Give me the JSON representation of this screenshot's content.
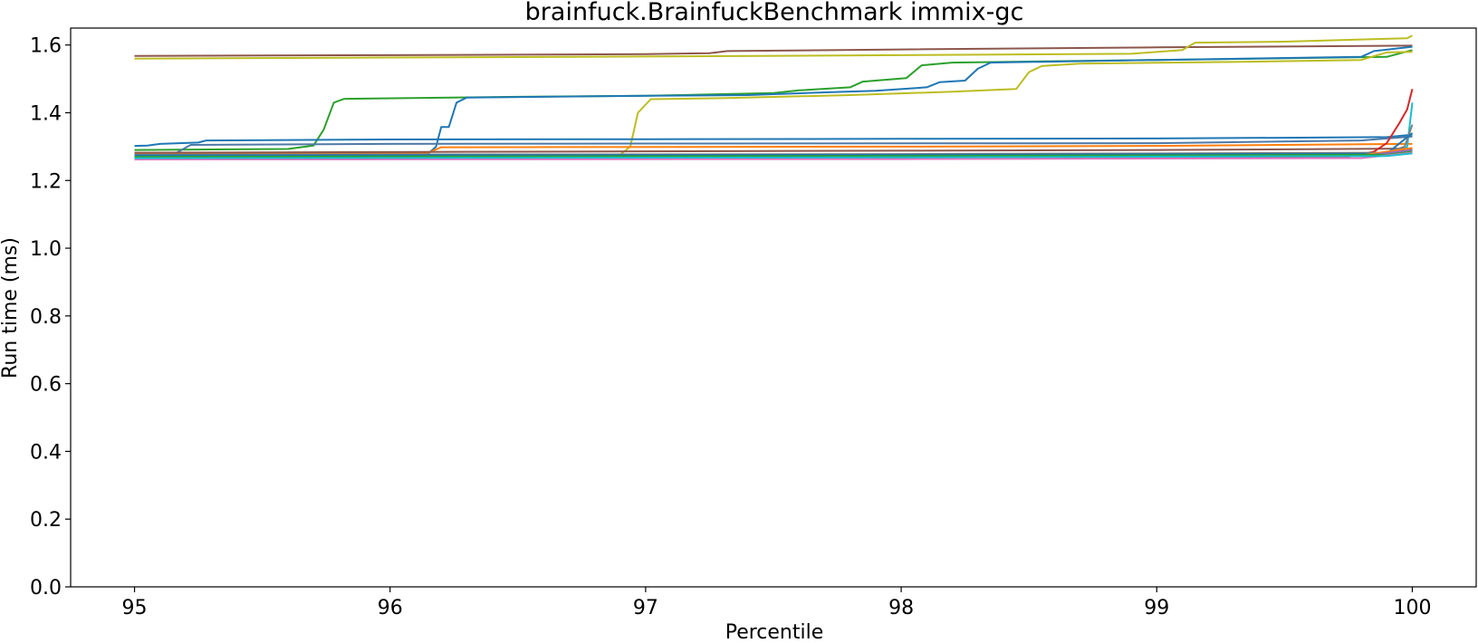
{
  "chart_data": {
    "type": "line",
    "title": "brainfuck.BrainfuckBenchmark immix-gc",
    "xlabel": "Percentile",
    "ylabel": "Run time (ms)",
    "xlim": [
      94.75,
      100.25
    ],
    "ylim": [
      0.0,
      1.65
    ],
    "xticks": [
      95,
      96,
      97,
      98,
      99,
      100
    ],
    "xtick_labels": [
      "95",
      "96",
      "97",
      "98",
      "99",
      "100"
    ],
    "yticks": [
      0.0,
      0.2,
      0.4,
      0.6,
      0.8,
      1.0,
      1.2,
      1.4,
      1.6
    ],
    "ytick_labels": [
      "0.0",
      "0.2",
      "0.4",
      "0.6",
      "0.8",
      "1.0",
      "1.2",
      "1.4",
      "1.6"
    ],
    "grid": false,
    "legend": "none",
    "series": [
      {
        "color": "#8c564b",
        "points": [
          [
            95,
            1.568
          ],
          [
            96,
            1.57
          ],
          [
            97,
            1.573
          ],
          [
            97.25,
            1.576
          ],
          [
            97.32,
            1.582
          ],
          [
            98,
            1.587
          ],
          [
            99,
            1.593
          ],
          [
            100,
            1.598
          ]
        ]
      },
      {
        "color": "#bcbd22",
        "points": [
          [
            95,
            1.56
          ],
          [
            96,
            1.563
          ],
          [
            97,
            1.566
          ],
          [
            98,
            1.57
          ],
          [
            98.9,
            1.574
          ],
          [
            99.1,
            1.585
          ],
          [
            99.15,
            1.607
          ],
          [
            99.5,
            1.61
          ],
          [
            99.98,
            1.62
          ],
          [
            100,
            1.628
          ]
        ]
      },
      {
        "color": "#2ca02c",
        "points": [
          [
            95,
            1.29
          ],
          [
            95.6,
            1.293
          ],
          [
            95.7,
            1.303
          ],
          [
            95.74,
            1.35
          ],
          [
            95.78,
            1.43
          ],
          [
            95.82,
            1.441
          ],
          [
            96.5,
            1.447
          ],
          [
            97,
            1.45
          ],
          [
            97.5,
            1.458
          ],
          [
            97.6,
            1.466
          ],
          [
            97.8,
            1.475
          ],
          [
            97.85,
            1.492
          ],
          [
            98.02,
            1.502
          ],
          [
            98.08,
            1.54
          ],
          [
            98.2,
            1.548
          ],
          [
            99,
            1.556
          ],
          [
            99.9,
            1.565
          ],
          [
            100,
            1.585
          ]
        ]
      },
      {
        "color": "#1f77b4",
        "points": [
          [
            95,
            1.27
          ],
          [
            96.15,
            1.28
          ],
          [
            96.18,
            1.3
          ],
          [
            96.2,
            1.358
          ],
          [
            96.23,
            1.358
          ],
          [
            96.26,
            1.43
          ],
          [
            96.3,
            1.445
          ],
          [
            97,
            1.45
          ],
          [
            97.4,
            1.452
          ],
          [
            97.7,
            1.46
          ],
          [
            97.9,
            1.465
          ],
          [
            98.1,
            1.475
          ],
          [
            98.15,
            1.49
          ],
          [
            98.25,
            1.495
          ],
          [
            98.3,
            1.53
          ],
          [
            98.35,
            1.548
          ],
          [
            99,
            1.556
          ],
          [
            99.8,
            1.565
          ],
          [
            99.85,
            1.582
          ],
          [
            100,
            1.595
          ]
        ]
      },
      {
        "color": "#bcbd22",
        "points": [
          [
            95,
            1.272
          ],
          [
            96.5,
            1.274
          ],
          [
            96.9,
            1.276
          ],
          [
            96.94,
            1.3
          ],
          [
            96.97,
            1.4
          ],
          [
            97.02,
            1.44
          ],
          [
            97.3,
            1.443
          ],
          [
            97.8,
            1.452
          ],
          [
            98.2,
            1.462
          ],
          [
            98.45,
            1.47
          ],
          [
            98.5,
            1.52
          ],
          [
            98.55,
            1.538
          ],
          [
            98.7,
            1.545
          ],
          [
            99.3,
            1.55
          ],
          [
            99.8,
            1.556
          ],
          [
            99.9,
            1.578
          ],
          [
            100,
            1.58
          ]
        ]
      },
      {
        "color": "#1f77b4",
        "points": [
          [
            95,
            1.302
          ],
          [
            95.05,
            1.303
          ],
          [
            95.1,
            1.308
          ],
          [
            95.25,
            1.312
          ],
          [
            95.28,
            1.318
          ],
          [
            96,
            1.321
          ],
          [
            97,
            1.322
          ],
          [
            98,
            1.323
          ],
          [
            99,
            1.324
          ],
          [
            99.9,
            1.328
          ],
          [
            100,
            1.335
          ]
        ]
      },
      {
        "color": "#4e79a7",
        "points": [
          [
            95,
            1.272
          ],
          [
            95.15,
            1.276
          ],
          [
            95.22,
            1.305
          ],
          [
            96,
            1.308
          ],
          [
            97,
            1.309
          ],
          [
            99,
            1.31
          ],
          [
            99.8,
            1.318
          ],
          [
            100,
            1.33
          ]
        ]
      },
      {
        "color": "#ff7f0e",
        "points": [
          [
            95,
            1.28
          ],
          [
            96.15,
            1.282
          ],
          [
            96.2,
            1.298
          ],
          [
            98,
            1.3
          ],
          [
            99,
            1.302
          ],
          [
            100,
            1.308
          ]
        ]
      },
      {
        "color": "#8c564b",
        "points": [
          [
            95,
            1.282
          ],
          [
            96,
            1.284
          ],
          [
            97,
            1.286
          ],
          [
            98,
            1.288
          ],
          [
            99,
            1.29
          ],
          [
            100,
            1.294
          ]
        ]
      },
      {
        "color": "#d62728",
        "points": [
          [
            95,
            1.265
          ],
          [
            98,
            1.267
          ],
          [
            99.75,
            1.27
          ],
          [
            99.85,
            1.285
          ],
          [
            99.9,
            1.31
          ],
          [
            99.95,
            1.37
          ],
          [
            99.98,
            1.41
          ],
          [
            100,
            1.47
          ]
        ]
      },
      {
        "color": "#17becf",
        "points": [
          [
            95,
            1.275
          ],
          [
            98,
            1.277
          ],
          [
            99.95,
            1.28
          ],
          [
            99.98,
            1.3
          ],
          [
            100,
            1.43
          ]
        ]
      },
      {
        "color": "#7f7f7f",
        "points": [
          [
            95,
            1.276
          ],
          [
            98,
            1.278
          ],
          [
            99.9,
            1.282
          ],
          [
            99.97,
            1.3
          ],
          [
            100,
            1.365
          ]
        ]
      },
      {
        "color": "#1f77b4",
        "points": [
          [
            95,
            1.274
          ],
          [
            98,
            1.276
          ],
          [
            99.9,
            1.279
          ],
          [
            100,
            1.34
          ]
        ]
      },
      {
        "color": "#ff7f0e",
        "points": [
          [
            95,
            1.268
          ],
          [
            98,
            1.27
          ],
          [
            99.8,
            1.274
          ],
          [
            100,
            1.296
          ]
        ]
      },
      {
        "color": "#9467bd",
        "points": [
          [
            95,
            1.266
          ],
          [
            98,
            1.268
          ],
          [
            99.8,
            1.272
          ],
          [
            100,
            1.29
          ]
        ]
      },
      {
        "color": "#2ca02c",
        "points": [
          [
            95,
            1.27
          ],
          [
            98,
            1.272
          ],
          [
            99.9,
            1.276
          ],
          [
            100,
            1.285
          ]
        ]
      },
      {
        "color": "#e377c2",
        "points": [
          [
            95,
            1.262
          ],
          [
            98,
            1.263
          ],
          [
            99.8,
            1.266
          ],
          [
            100,
            1.282
          ]
        ]
      },
      {
        "color": "#17becf",
        "points": [
          [
            95,
            1.266
          ],
          [
            98,
            1.268
          ],
          [
            99.9,
            1.272
          ],
          [
            100,
            1.28
          ]
        ]
      }
    ]
  }
}
